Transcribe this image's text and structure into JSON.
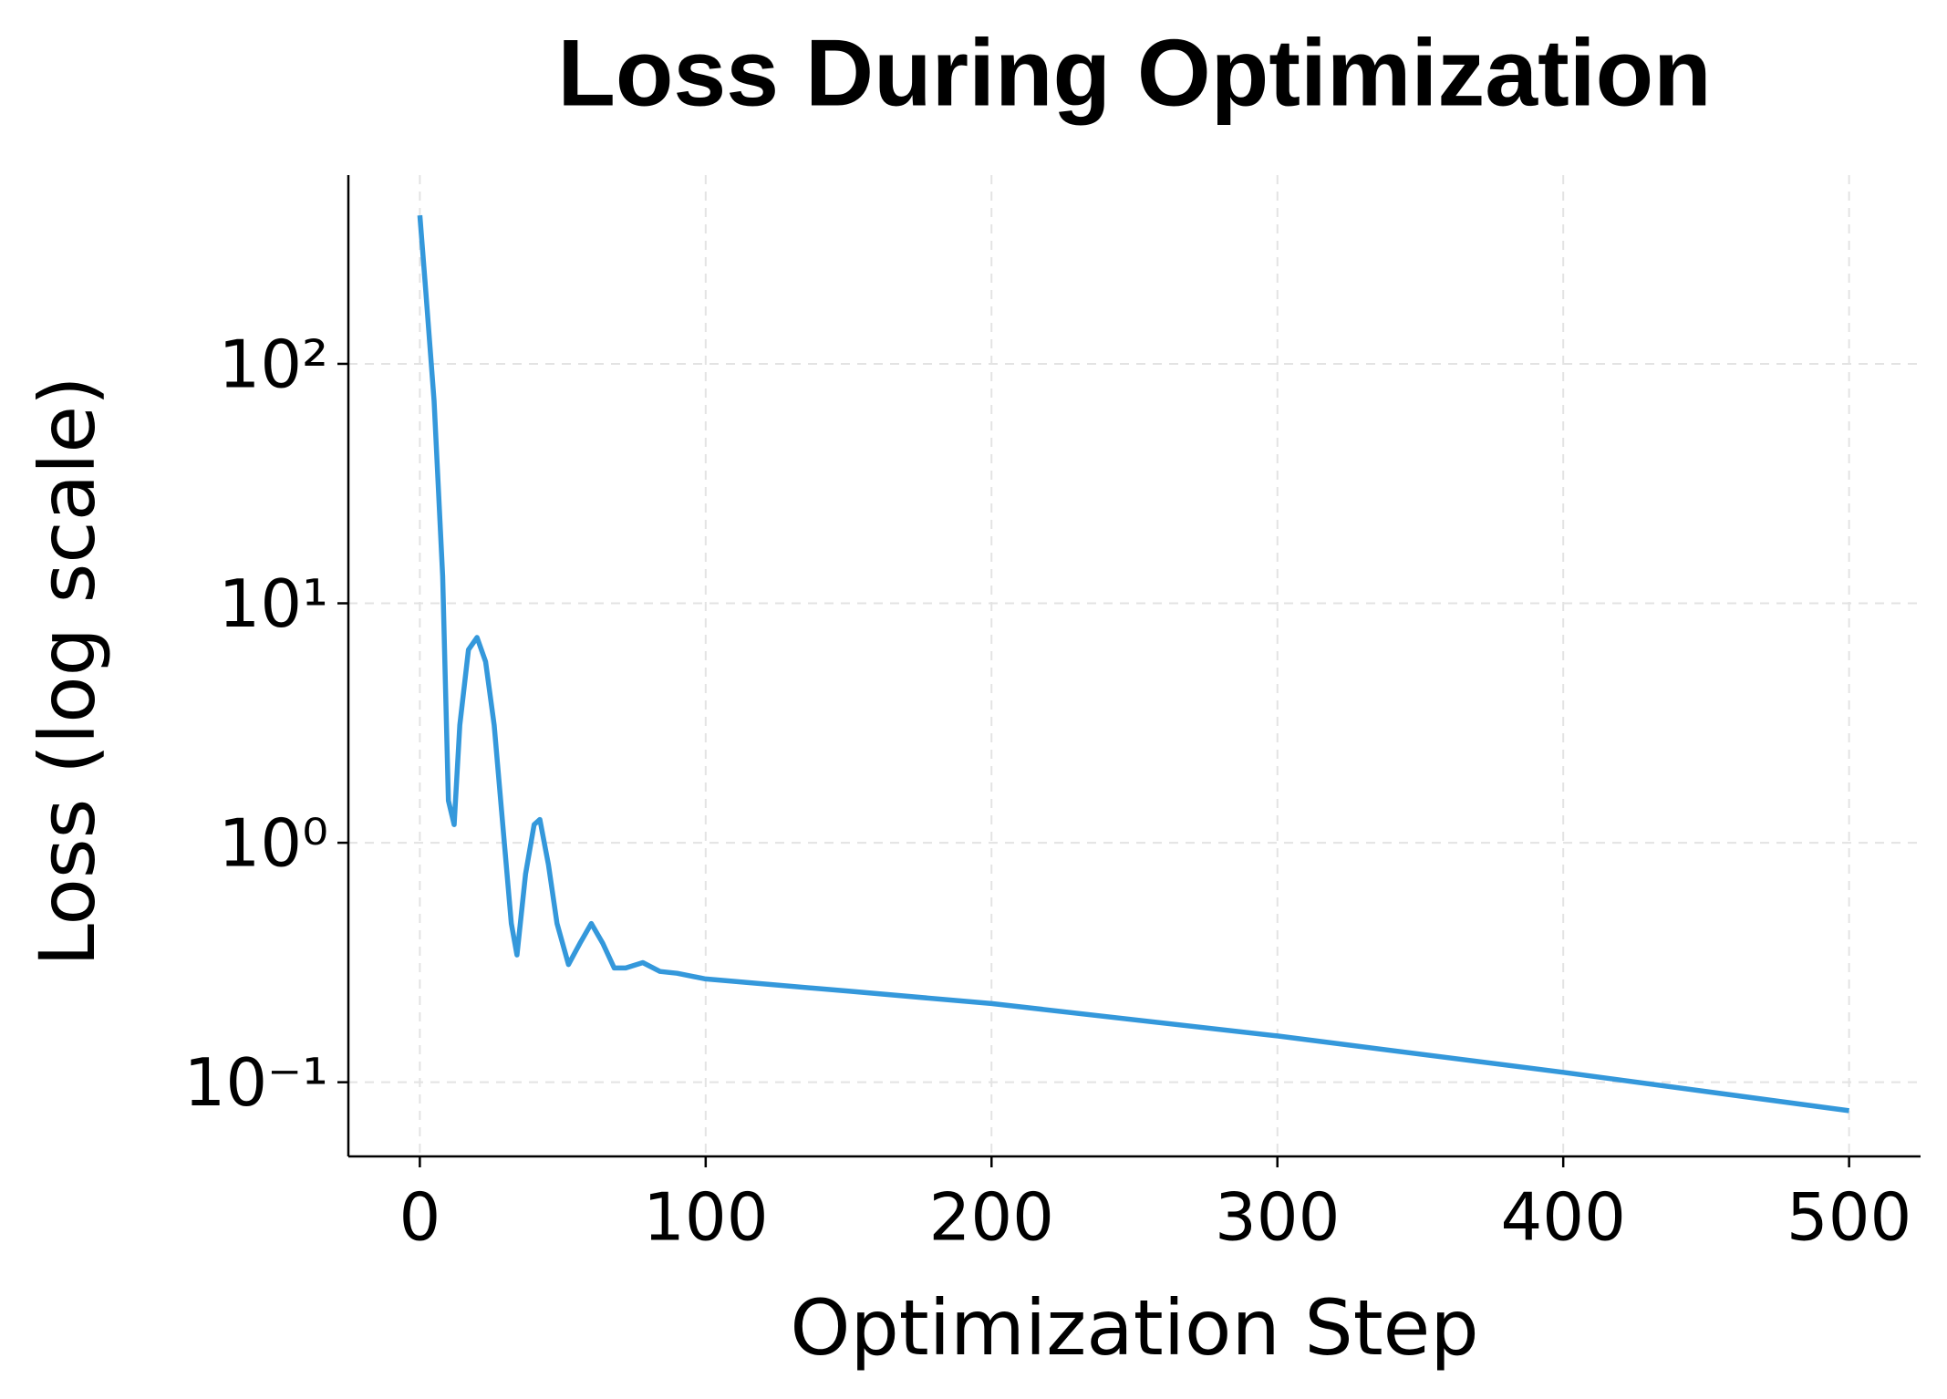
{
  "chart_data": {
    "type": "line",
    "title": "Loss During Optimization",
    "x_label": "Optimization Step",
    "y_label": "Loss (log scale)",
    "y_scale": "log",
    "grid": true,
    "color": "#3498db",
    "x": [
      0,
      2,
      5,
      8,
      10,
      12,
      14,
      17,
      20,
      23,
      26,
      29,
      32,
      34,
      37,
      40,
      42,
      45,
      48,
      52,
      56,
      60,
      64,
      68,
      72,
      78,
      84,
      90,
      100,
      150,
      200,
      300,
      400,
      500
    ],
    "values": [
      417,
      208,
      70,
      13,
      1.5,
      1.19,
      3.1,
      6.4,
      7.2,
      5.7,
      3.1,
      1.19,
      0.46,
      0.34,
      0.74,
      1.19,
      1.25,
      0.81,
      0.46,
      0.31,
      0.38,
      0.46,
      0.38,
      0.3,
      0.3,
      0.316,
      0.29,
      0.285,
      0.27,
      0.24,
      0.213,
      0.156,
      0.11,
      0.076
    ],
    "xlim": [
      -25,
      525
    ],
    "xticks": [
      0,
      100,
      200,
      300,
      400,
      500
    ],
    "ylim": [
      0.049,
      614
    ],
    "yticks": [
      {
        "value": 0.1,
        "label": "10⁻¹"
      },
      {
        "value": 1,
        "label": "10⁰"
      },
      {
        "value": 10,
        "label": "10¹"
      },
      {
        "value": 100,
        "label": "10²"
      }
    ]
  }
}
